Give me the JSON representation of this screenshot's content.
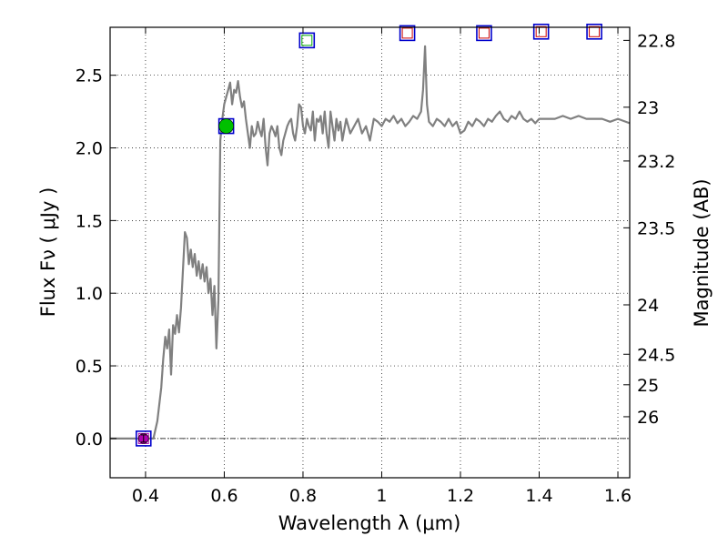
{
  "chart_data": {
    "type": "line",
    "xlabel": "Wavelength  λ (μm)",
    "ylabel": "Flux  Fν  ( μJy )",
    "y2label": "Magnitude (AB)",
    "xlim": [
      0.31,
      1.63
    ],
    "ylim": [
      -0.27,
      2.83
    ],
    "grid": true,
    "x_ticks": [
      0.4,
      0.6,
      0.8,
      1.0,
      1.2,
      1.4,
      1.6
    ],
    "x_tick_labels": [
      "0.4",
      "0.6",
      "0.8",
      "1",
      "1.2",
      "1.4",
      "1.6"
    ],
    "y_ticks": [
      0.0,
      0.5,
      1.0,
      1.5,
      2.0,
      2.5
    ],
    "y_tick_labels": [
      "0.0",
      "0.5",
      "1.0",
      "1.5",
      "2.0",
      "2.5"
    ],
    "y2_ticks": [
      {
        "label": "22.8",
        "flux": 2.74
      },
      {
        "label": "23",
        "flux": 2.28
      },
      {
        "label": "23.2",
        "flux": 1.91
      },
      {
        "label": "23.5",
        "flux": 1.45
      },
      {
        "label": "24",
        "flux": 0.92
      },
      {
        "label": "24.5",
        "flux": 0.58
      },
      {
        "label": "25",
        "flux": 0.37
      },
      {
        "label": "26",
        "flux": 0.15
      }
    ],
    "zero_line": 0.0,
    "series": [
      {
        "kind": "line",
        "color": "#808080",
        "x": [
          0.31,
          0.42,
          0.43,
          0.44,
          0.445,
          0.45,
          0.455,
          0.46,
          0.465,
          0.47,
          0.475,
          0.48,
          0.485,
          0.49,
          0.5,
          0.505,
          0.51,
          0.515,
          0.52,
          0.525,
          0.53,
          0.535,
          0.54,
          0.545,
          0.55,
          0.555,
          0.56,
          0.565,
          0.57,
          0.575,
          0.58,
          0.585,
          0.59,
          0.595,
          0.6,
          0.605,
          0.61,
          0.615,
          0.62,
          0.625,
          0.63,
          0.635,
          0.64,
          0.645,
          0.65,
          0.655,
          0.66,
          0.665,
          0.67,
          0.675,
          0.68,
          0.685,
          0.69,
          0.695,
          0.7,
          0.705,
          0.71,
          0.715,
          0.72,
          0.725,
          0.73,
          0.735,
          0.74,
          0.745,
          0.75,
          0.755,
          0.76,
          0.765,
          0.77,
          0.775,
          0.78,
          0.785,
          0.79,
          0.795,
          0.8,
          0.805,
          0.81,
          0.815,
          0.82,
          0.825,
          0.83,
          0.835,
          0.84,
          0.845,
          0.85,
          0.855,
          0.86,
          0.865,
          0.87,
          0.875,
          0.88,
          0.885,
          0.89,
          0.895,
          0.9,
          0.91,
          0.92,
          0.93,
          0.94,
          0.95,
          0.96,
          0.97,
          0.98,
          0.99,
          1.0,
          1.01,
          1.02,
          1.03,
          1.04,
          1.05,
          1.06,
          1.07,
          1.08,
          1.09,
          1.1,
          1.105,
          1.11,
          1.115,
          1.12,
          1.13,
          1.14,
          1.15,
          1.16,
          1.17,
          1.18,
          1.19,
          1.2,
          1.21,
          1.22,
          1.23,
          1.24,
          1.25,
          1.26,
          1.27,
          1.28,
          1.29,
          1.3,
          1.31,
          1.32,
          1.33,
          1.34,
          1.35,
          1.36,
          1.37,
          1.38,
          1.39,
          1.4,
          1.42,
          1.44,
          1.46,
          1.48,
          1.5,
          1.52,
          1.54,
          1.56,
          1.58,
          1.6,
          1.63
        ],
        "y": [
          0.0,
          0.0,
          0.12,
          0.35,
          0.55,
          0.7,
          0.62,
          0.75,
          0.44,
          0.78,
          0.72,
          0.85,
          0.73,
          0.9,
          1.42,
          1.38,
          1.2,
          1.3,
          1.18,
          1.27,
          1.12,
          1.22,
          1.1,
          1.2,
          1.08,
          1.18,
          1.0,
          1.1,
          0.85,
          1.05,
          0.62,
          0.95,
          2.05,
          2.2,
          2.3,
          2.35,
          2.4,
          2.45,
          2.3,
          2.4,
          2.38,
          2.46,
          2.35,
          2.28,
          2.32,
          2.2,
          2.1,
          2.0,
          2.15,
          2.08,
          2.1,
          2.18,
          2.12,
          2.08,
          2.2,
          2.0,
          1.88,
          2.1,
          2.15,
          2.12,
          2.08,
          2.15,
          2.0,
          1.95,
          2.05,
          2.1,
          2.15,
          2.18,
          2.2,
          2.1,
          2.05,
          2.15,
          2.3,
          2.28,
          2.15,
          2.1,
          2.2,
          2.15,
          2.12,
          2.25,
          2.05,
          2.2,
          2.18,
          2.22,
          2.1,
          2.25,
          2.1,
          2.0,
          2.25,
          2.15,
          2.05,
          2.2,
          2.12,
          2.18,
          2.05,
          2.2,
          2.1,
          2.15,
          2.2,
          2.1,
          2.15,
          2.05,
          2.2,
          2.18,
          2.15,
          2.2,
          2.18,
          2.22,
          2.17,
          2.2,
          2.15,
          2.18,
          2.22,
          2.2,
          2.25,
          2.4,
          2.7,
          2.3,
          2.18,
          2.15,
          2.2,
          2.18,
          2.15,
          2.2,
          2.15,
          2.18,
          2.1,
          2.12,
          2.18,
          2.15,
          2.2,
          2.18,
          2.15,
          2.2,
          2.18,
          2.22,
          2.25,
          2.2,
          2.18,
          2.22,
          2.2,
          2.25,
          2.2,
          2.18,
          2.2,
          2.17,
          2.2,
          2.2,
          2.2,
          2.22,
          2.2,
          2.22,
          2.2,
          2.2,
          2.2,
          2.18,
          2.2,
          2.17
        ]
      },
      {
        "kind": "measured",
        "marker": "circle",
        "fill_colors": [
          "#b000b0",
          "#00c000"
        ],
        "x": [
          0.395,
          0.605
        ],
        "y": [
          0.0,
          2.15
        ]
      },
      {
        "kind": "model",
        "marker": "square",
        "edge_color": "#0000cc",
        "inner_colors": [
          "#b000b0",
          "#00c000",
          "#00aa00",
          "#cc0000",
          "#cc0000",
          "#cc0000",
          "#cc0000"
        ],
        "x": [
          0.395,
          0.605,
          0.81,
          1.065,
          1.26,
          1.405,
          1.54
        ],
        "y": [
          0.0,
          2.15,
          2.74,
          2.79,
          2.79,
          2.8,
          2.8
        ]
      }
    ]
  }
}
